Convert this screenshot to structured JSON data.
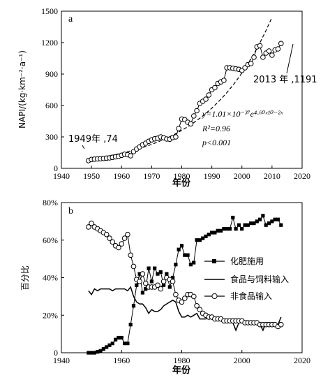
{
  "chart_data": [
    {
      "panel": "a",
      "type": "scatter",
      "ylabel": "NAPI/(kg·km⁻²·a⁻¹)",
      "xlabel": "年份",
      "xlim": [
        1940,
        2020
      ],
      "ylim": [
        0,
        1500
      ],
      "xticks": [
        1940,
        1950,
        1960,
        1970,
        1980,
        1990,
        2000,
        2010,
        2020
      ],
      "yticks": [
        0,
        300,
        600,
        900,
        1200,
        1500
      ],
      "grid": false,
      "series": [
        {
          "marker": "open-circle",
          "line": "solid",
          "x": [
            1949,
            1950,
            1951,
            1952,
            1953,
            1954,
            1955,
            1956,
            1957,
            1958,
            1959,
            1960,
            1961,
            1962,
            1963,
            1964,
            1965,
            1966,
            1967,
            1968,
            1969,
            1970,
            1971,
            1972,
            1973,
            1974,
            1975,
            1976,
            1977,
            1978,
            1979,
            1980,
            1981,
            1982,
            1983,
            1984,
            1985,
            1986,
            1987,
            1988,
            1989,
            1990,
            1991,
            1992,
            1993,
            1994,
            1995,
            1996,
            1997,
            1998,
            1999,
            2000,
            2001,
            2002,
            2003,
            2004,
            2005,
            2006,
            2007,
            2008,
            2009,
            2010,
            2011,
            2012,
            2013
          ],
          "y": [
            74,
            85,
            88,
            90,
            92,
            95,
            97,
            100,
            105,
            110,
            115,
            125,
            135,
            130,
            120,
            160,
            185,
            205,
            225,
            240,
            258,
            272,
            282,
            287,
            300,
            292,
            280,
            278,
            295,
            300,
            380,
            470,
            465,
            440,
            425,
            500,
            550,
            620,
            640,
            660,
            700,
            750,
            770,
            810,
            825,
            840,
            960,
            960,
            955,
            950,
            945,
            935,
            960,
            990,
            1000,
            1060,
            1160,
            1170,
            1060,
            1100,
            1120,
            1080,
            1130,
            1140,
            1191
          ]
        },
        {
          "name": "fit",
          "line": "dashed",
          "model": "y=1.01e-37*exp(0.046*x)",
          "x_range": [
            1949,
            2010
          ]
        }
      ],
      "annotations": {
        "panel_label": "a",
        "start_label": "1949年 ,74",
        "end_label": "2013 年 ,1191",
        "equation": "y=1.01×10⁻³⁷e⁴·⁶⁰ˣ¹⁰⁻²ˣ",
        "r2": "R²=0.96",
        "p": "p<0.001"
      }
    },
    {
      "panel": "b",
      "type": "line",
      "ylabel": "百分比",
      "xlabel": "年份",
      "xlim": [
        1940,
        2020
      ],
      "ylim": [
        0,
        80
      ],
      "xticks": [
        1940,
        1960,
        1980,
        2000,
        2020
      ],
      "ytick_labels": [
        "0",
        "20%",
        "40%",
        "60%",
        "80%"
      ],
      "yticks": [
        0,
        20,
        40,
        60,
        80
      ],
      "grid": false,
      "legend_position": "right",
      "x": [
        1949,
        1950,
        1951,
        1952,
        1953,
        1954,
        1955,
        1956,
        1957,
        1958,
        1959,
        1960,
        1961,
        1962,
        1963,
        1964,
        1965,
        1966,
        1967,
        1968,
        1969,
        1970,
        1971,
        1972,
        1973,
        1974,
        1975,
        1976,
        1977,
        1978,
        1979,
        1980,
        1981,
        1982,
        1983,
        1984,
        1985,
        1986,
        1987,
        1988,
        1989,
        1990,
        1991,
        1992,
        1993,
        1994,
        1995,
        1996,
        1997,
        1998,
        1999,
        2000,
        2001,
        2002,
        2003,
        2004,
        2005,
        2006,
        2007,
        2008,
        2009,
        2010,
        2011,
        2012,
        2013
      ],
      "series": [
        {
          "name": "化肥施用",
          "marker": "filled-square",
          "values": [
            0,
            0,
            0,
            0.5,
            1,
            2,
            3,
            4,
            5,
            7,
            8,
            8,
            5,
            5,
            15,
            25,
            36,
            42,
            32,
            34,
            45,
            38,
            45,
            42,
            43,
            36,
            42,
            35,
            40,
            47,
            55,
            57,
            52,
            52,
            47,
            48,
            60,
            60,
            61,
            62,
            63,
            64,
            64,
            65,
            65,
            66,
            66,
            66,
            72,
            66,
            68,
            66,
            68,
            68,
            69,
            69,
            70,
            71,
            73,
            68,
            69,
            70,
            71,
            71,
            68
          ]
        },
        {
          "name": "食品与饲料输入",
          "marker": "none",
          "values": [
            33,
            31,
            34,
            33,
            34,
            34,
            34,
            34,
            33,
            34,
            34,
            34,
            34,
            33,
            35,
            30,
            27,
            26,
            26,
            24,
            21,
            23,
            22,
            22,
            23,
            25,
            26,
            27,
            28,
            27,
            22,
            19,
            19,
            20,
            19,
            20,
            21,
            18,
            18,
            18,
            19,
            18,
            17,
            17,
            17,
            16,
            16,
            16,
            16,
            12,
            16,
            16,
            17,
            17,
            16,
            16,
            15,
            15,
            12,
            16,
            16,
            15,
            15,
            15,
            19
          ]
        },
        {
          "name": "非食品输入",
          "marker": "open-circle",
          "values": [
            67,
            69,
            67,
            66,
            65,
            64,
            63,
            61,
            59,
            57,
            56,
            58,
            61,
            63,
            52,
            46,
            39,
            38,
            42,
            37,
            35,
            35,
            35,
            36,
            34,
            38,
            40,
            39,
            38,
            31,
            28,
            27,
            29,
            31,
            31,
            30,
            25,
            23,
            21,
            20,
            19,
            19,
            18,
            18,
            18,
            17,
            17,
            17,
            17,
            17,
            17,
            17,
            16,
            16,
            16,
            16,
            16,
            15,
            15,
            15,
            15,
            15,
            15,
            14,
            15
          ]
        }
      ],
      "annotations": {
        "panel_label": "b"
      }
    }
  ]
}
